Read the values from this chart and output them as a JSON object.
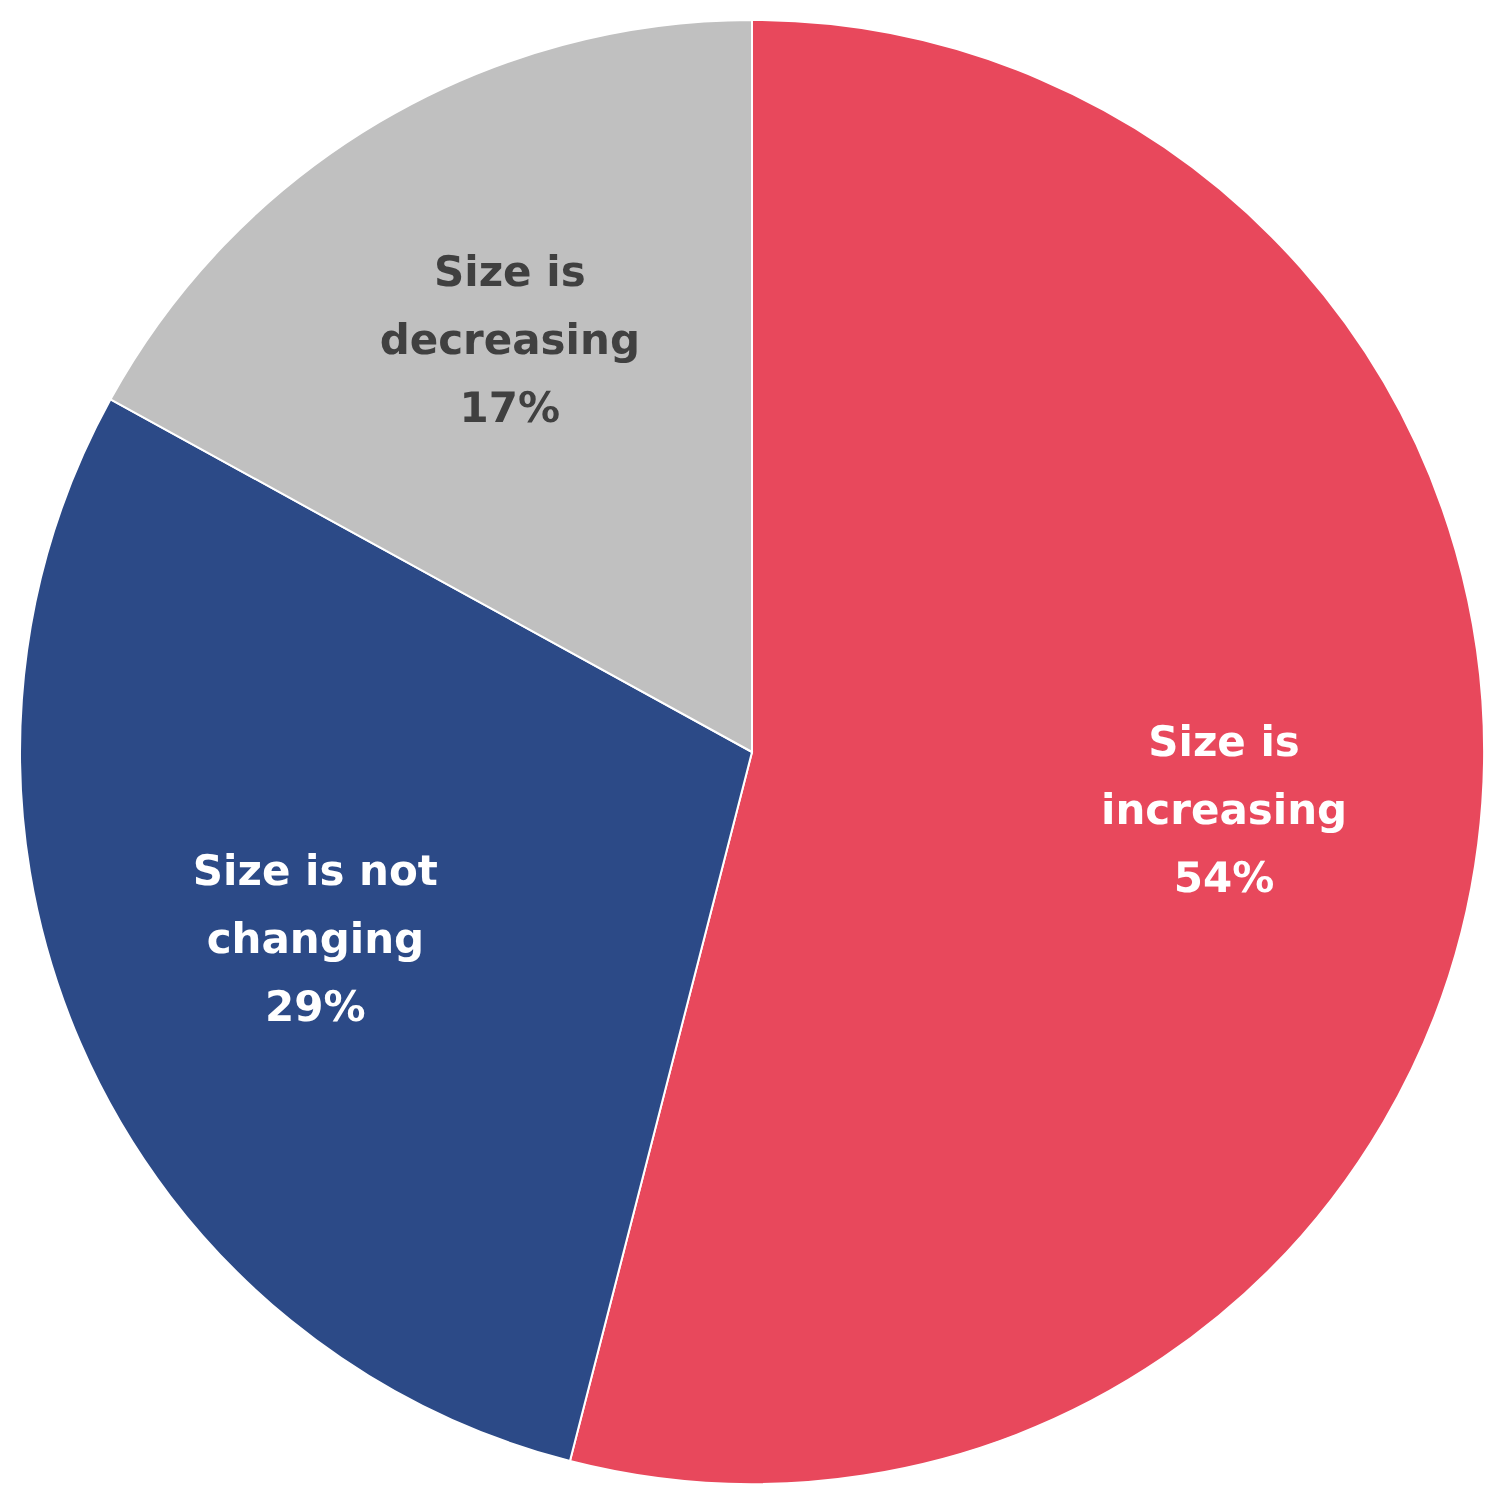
{
  "chart_data": {
    "type": "pie",
    "categories": [
      "Size is increasing",
      "Size is not changing",
      "Size is decreasing"
    ],
    "values": [
      54,
      29,
      17
    ],
    "colors": [
      "#e8485c",
      "#2c4a87",
      "#c0c0c0"
    ],
    "value_labels": [
      "54%",
      "29%",
      "17%"
    ]
  }
}
